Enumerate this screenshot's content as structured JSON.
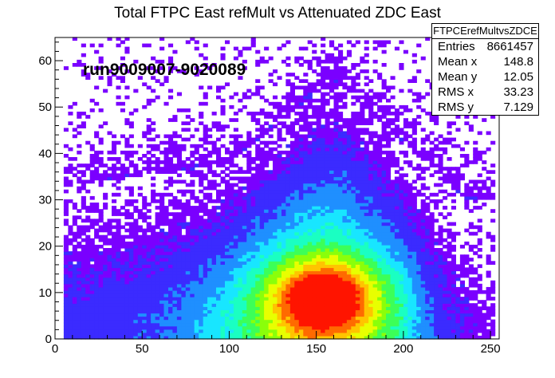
{
  "chart_data": {
    "type": "heatmap",
    "title": "Total FTPC East refMult vs Attenuated  ZDC East",
    "annotation": "run9009007-9020089",
    "xlim": [
      0,
      255
    ],
    "ylim": [
      0,
      65
    ],
    "x_ticks": [
      0,
      50,
      100,
      150,
      200,
      250
    ],
    "y_ticks": [
      0,
      10,
      20,
      30,
      40,
      50,
      60
    ],
    "colormap": [
      "#7a00ff",
      "#3b2bff",
      "#1f8fff",
      "#18e6ff",
      "#1affc2",
      "#3cff58",
      "#8aff0a",
      "#e8ff00",
      "#ffc400",
      "#ff6a00",
      "#ff1400"
    ],
    "peak": {
      "x": 155,
      "y": 9
    },
    "stats": {
      "name": "FTPCErefMultvsZDCE",
      "entries": "8661457",
      "mean_x": "148.8",
      "mean_y": "12.05",
      "rms_x": "33.23",
      "rms_y": "7.129"
    },
    "stats_labels": {
      "entries": "Entries",
      "mean_x": "Mean x",
      "mean_y": "Mean y",
      "rms_x": "RMS x",
      "rms_y": "RMS y"
    }
  }
}
